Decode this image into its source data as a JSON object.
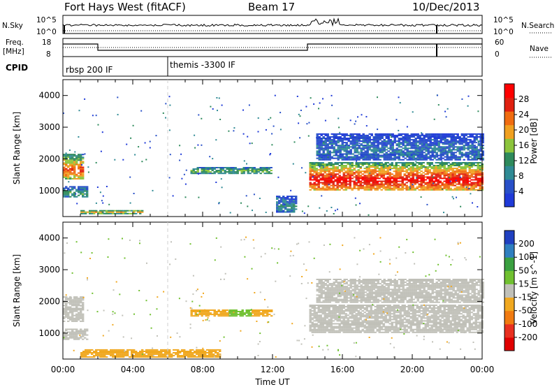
{
  "header": {
    "radar": "Fort Hays West (fitACF)",
    "beam": "Beam 17",
    "date": "10/Dec/2013"
  },
  "noise_panel": {
    "left_label": "N.Sky",
    "right_label": "N.Search",
    "left_ticks": [
      "10^5",
      "10^0"
    ],
    "right_ticks": [
      "10^5",
      "10^0"
    ]
  },
  "freq_panel": {
    "left_label_1": "Freq.",
    "left_label_2": "[MHz]",
    "right_label": "Nave",
    "left_ticks": [
      "18",
      "8"
    ],
    "right_ticks": [
      "60",
      "0"
    ]
  },
  "cpid_panel": {
    "label": "CPID",
    "entries": [
      "rbsp 200 IF",
      "themis -3300 IF"
    ]
  },
  "colors": {
    "power_scale": [
      "#1f3ad8",
      "#2850c8",
      "#2f8a94",
      "#2e8a5c",
      "#8cc43c",
      "#f0a020",
      "#f06c10",
      "#e02010",
      "#ff0000"
    ],
    "velocity_scale": [
      "#2040c0",
      "#2f7fbf",
      "#3aa040",
      "#70c030",
      "#c0c0b8",
      "#f0a820",
      "#f07a10",
      "#e83020",
      "#e00000"
    ]
  },
  "chart_data": [
    {
      "type": "heatmap",
      "title": "",
      "xlabel": "Time UT",
      "ylabel": "Slant Range [km]",
      "x_ticks": [
        "00:00",
        "04:00",
        "08:00",
        "12:00",
        "16:00",
        "20:00",
        "00:00"
      ],
      "y_ticks": [
        "1000",
        "2000",
        "3000",
        "4000"
      ],
      "xlim_hours": [
        0,
        24
      ],
      "ylim_km": [
        180,
        4500
      ],
      "colorbar_label": "Power [dB]",
      "colorbar_ticks": [
        "4",
        "8",
        "12",
        "16",
        "20",
        "24",
        "28"
      ],
      "colorbar_range": [
        0,
        32
      ],
      "regions": [
        {
          "t_start": 0.0,
          "t_end": 1.2,
          "r_min": 1350,
          "r_max": 2150,
          "value": 20
        },
        {
          "t_start": 0.0,
          "t_end": 1.4,
          "r_min": 780,
          "r_max": 1100,
          "value": 10
        },
        {
          "t_start": 1.0,
          "t_end": 4.5,
          "r_min": 250,
          "r_max": 380,
          "value": 16
        },
        {
          "t_start": 7.3,
          "t_end": 11.9,
          "r_min": 1520,
          "r_max": 1720,
          "value": 12
        },
        {
          "t_start": 12.2,
          "t_end": 13.3,
          "r_min": 300,
          "r_max": 800,
          "value": 8
        },
        {
          "t_start": 14.1,
          "t_end": 24.0,
          "r_min": 1000,
          "r_max": 1900,
          "value": 24
        },
        {
          "t_start": 14.5,
          "t_end": 24.0,
          "r_min": 1950,
          "r_max": 2800,
          "value": 6
        }
      ]
    },
    {
      "type": "heatmap",
      "title": "",
      "xlabel": "Time UT",
      "ylabel": "Slant Range [km]",
      "x_ticks": [
        "00:00",
        "04:00",
        "08:00",
        "12:00",
        "16:00",
        "20:00",
        "00:00"
      ],
      "y_ticks": [
        "1000",
        "2000",
        "3000",
        "4000"
      ],
      "xlim_hours": [
        0,
        24
      ],
      "ylim_km": [
        180,
        4500
      ],
      "colorbar_label": "Velocity [m s^-1]",
      "colorbar_ticks": [
        "200",
        "100",
        "50",
        "15",
        "-15",
        "-50",
        "-100",
        "-200"
      ],
      "regions": [
        {
          "t_start": 0.0,
          "t_end": 1.2,
          "r_min": 1350,
          "r_max": 2150,
          "value": 0
        },
        {
          "t_start": 0.0,
          "t_end": 1.4,
          "r_min": 780,
          "r_max": 1100,
          "value": 0
        },
        {
          "t_start": 1.0,
          "t_end": 9.0,
          "r_min": 220,
          "r_max": 450,
          "value": -40
        },
        {
          "t_start": 7.3,
          "t_end": 9.5,
          "r_min": 1520,
          "r_max": 1720,
          "value": -40
        },
        {
          "t_start": 9.5,
          "t_end": 10.8,
          "r_min": 1520,
          "r_max": 1720,
          "value": 30
        },
        {
          "t_start": 10.8,
          "t_end": 11.9,
          "r_min": 1520,
          "r_max": 1720,
          "value": -40
        },
        {
          "t_start": 14.1,
          "t_end": 24.0,
          "r_min": 1000,
          "r_max": 1900,
          "value": 0
        },
        {
          "t_start": 14.5,
          "t_end": 24.0,
          "r_min": 1950,
          "r_max": 2700,
          "value": 0
        }
      ]
    }
  ]
}
